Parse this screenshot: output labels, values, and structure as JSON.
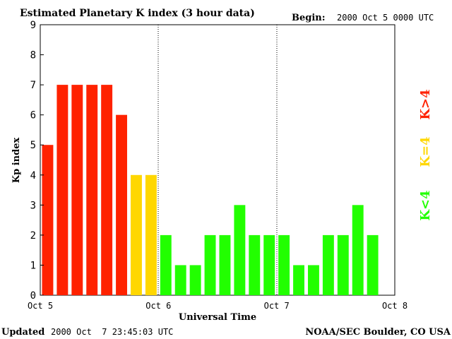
{
  "header": {
    "title": "Estimated Planetary K index (3 hour data)",
    "begin_label": "Begin:",
    "begin_value": "2000 Oct 5 0000 UTC"
  },
  "footer": {
    "updated_label": "Updated",
    "updated_value": "2000 Oct  7 23:45:03 UTC",
    "source": "NOAA/SEC Boulder, CO USA"
  },
  "legend": {
    "high": "K>4",
    "equal": "K=4",
    "low": "K<4"
  },
  "colors": {
    "high": "#ff2200",
    "equal": "#ffd700",
    "low": "#22ff00",
    "axis": "#000000"
  },
  "chart_data": {
    "type": "bar",
    "title": "Estimated Planetary K index (3 hour data)",
    "xlabel": "Universal Time",
    "ylabel": "Kp index",
    "ylim": [
      0,
      9
    ],
    "yticks": [
      "0",
      "1",
      "2",
      "3",
      "4",
      "5",
      "6",
      "7",
      "8",
      "9"
    ],
    "xticks": [
      "Oct 5",
      "Oct 6",
      "Oct 7",
      "Oct 8"
    ],
    "interval_hours": 3,
    "day_separators": [
      "Oct 6",
      "Oct 7"
    ],
    "values": [
      5,
      7,
      7,
      7,
      7,
      6,
      4,
      4,
      2,
      1,
      1,
      2,
      2,
      3,
      2,
      2,
      2,
      1,
      1,
      2,
      2,
      3,
      2
    ]
  }
}
